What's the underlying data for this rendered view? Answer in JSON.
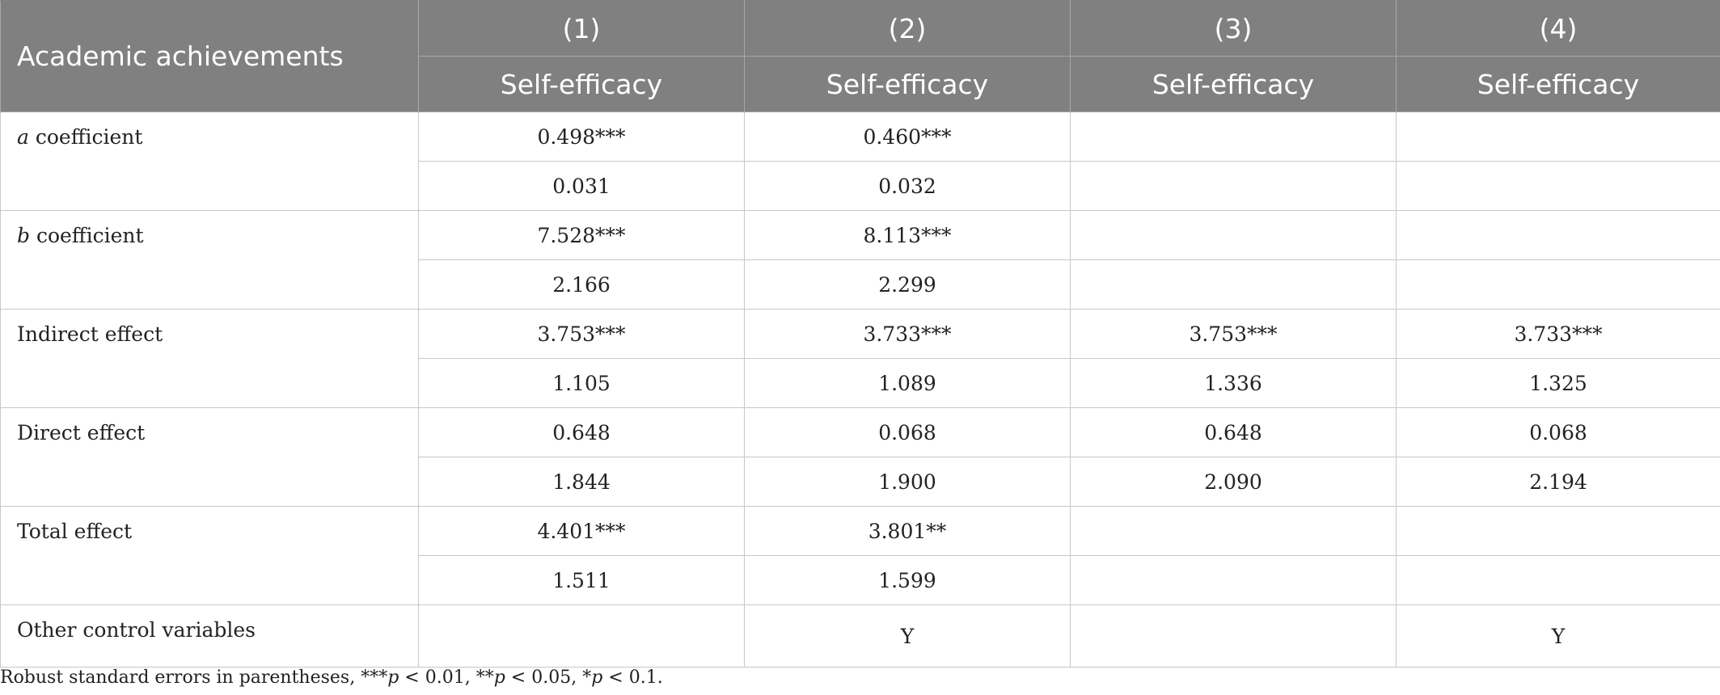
{
  "header": {
    "corner": "Academic achievements",
    "columns": [
      {
        "num": "(1)",
        "dep": "Self-efficacy"
      },
      {
        "num": "(2)",
        "dep": "Self-efficacy"
      },
      {
        "num": "(3)",
        "dep": "Self-efficacy"
      },
      {
        "num": "(4)",
        "dep": "Self-efficacy"
      }
    ]
  },
  "rows": [
    {
      "label_italic": "a",
      "label_rest": " coefficient",
      "coef": [
        "0.498***",
        "0.460***",
        "",
        ""
      ],
      "se": [
        "0.031",
        "0.032",
        "",
        ""
      ]
    },
    {
      "label_italic": "b",
      "label_rest": " coefficient",
      "coef": [
        "7.528***",
        "8.113***",
        "",
        ""
      ],
      "se": [
        "2.166",
        "2.299",
        "",
        ""
      ]
    },
    {
      "label": "Indirect effect",
      "coef": [
        "3.753***",
        "3.733***",
        "3.753***",
        "3.733***"
      ],
      "se": [
        "1.105",
        "1.089",
        "1.336",
        "1.325"
      ]
    },
    {
      "label": "Direct effect",
      "coef": [
        "0.648",
        "0.068",
        "0.648",
        "0.068"
      ],
      "se": [
        "1.844",
        "1.900",
        "2.090",
        "2.194"
      ]
    },
    {
      "label": "Total effect",
      "coef": [
        "4.401***",
        "3.801**",
        "",
        ""
      ],
      "se": [
        "1.511",
        "1.599",
        "",
        ""
      ]
    }
  ],
  "controls": {
    "label": "Other control variables",
    "values": [
      "",
      "Y",
      "",
      "Y"
    ]
  },
  "note": {
    "prefix": "Robust standard errors in parentheses, ***",
    "p": "p",
    "t1": " < 0.01, **",
    "t2": " < 0.05, *",
    "t3": " < 0.1."
  }
}
